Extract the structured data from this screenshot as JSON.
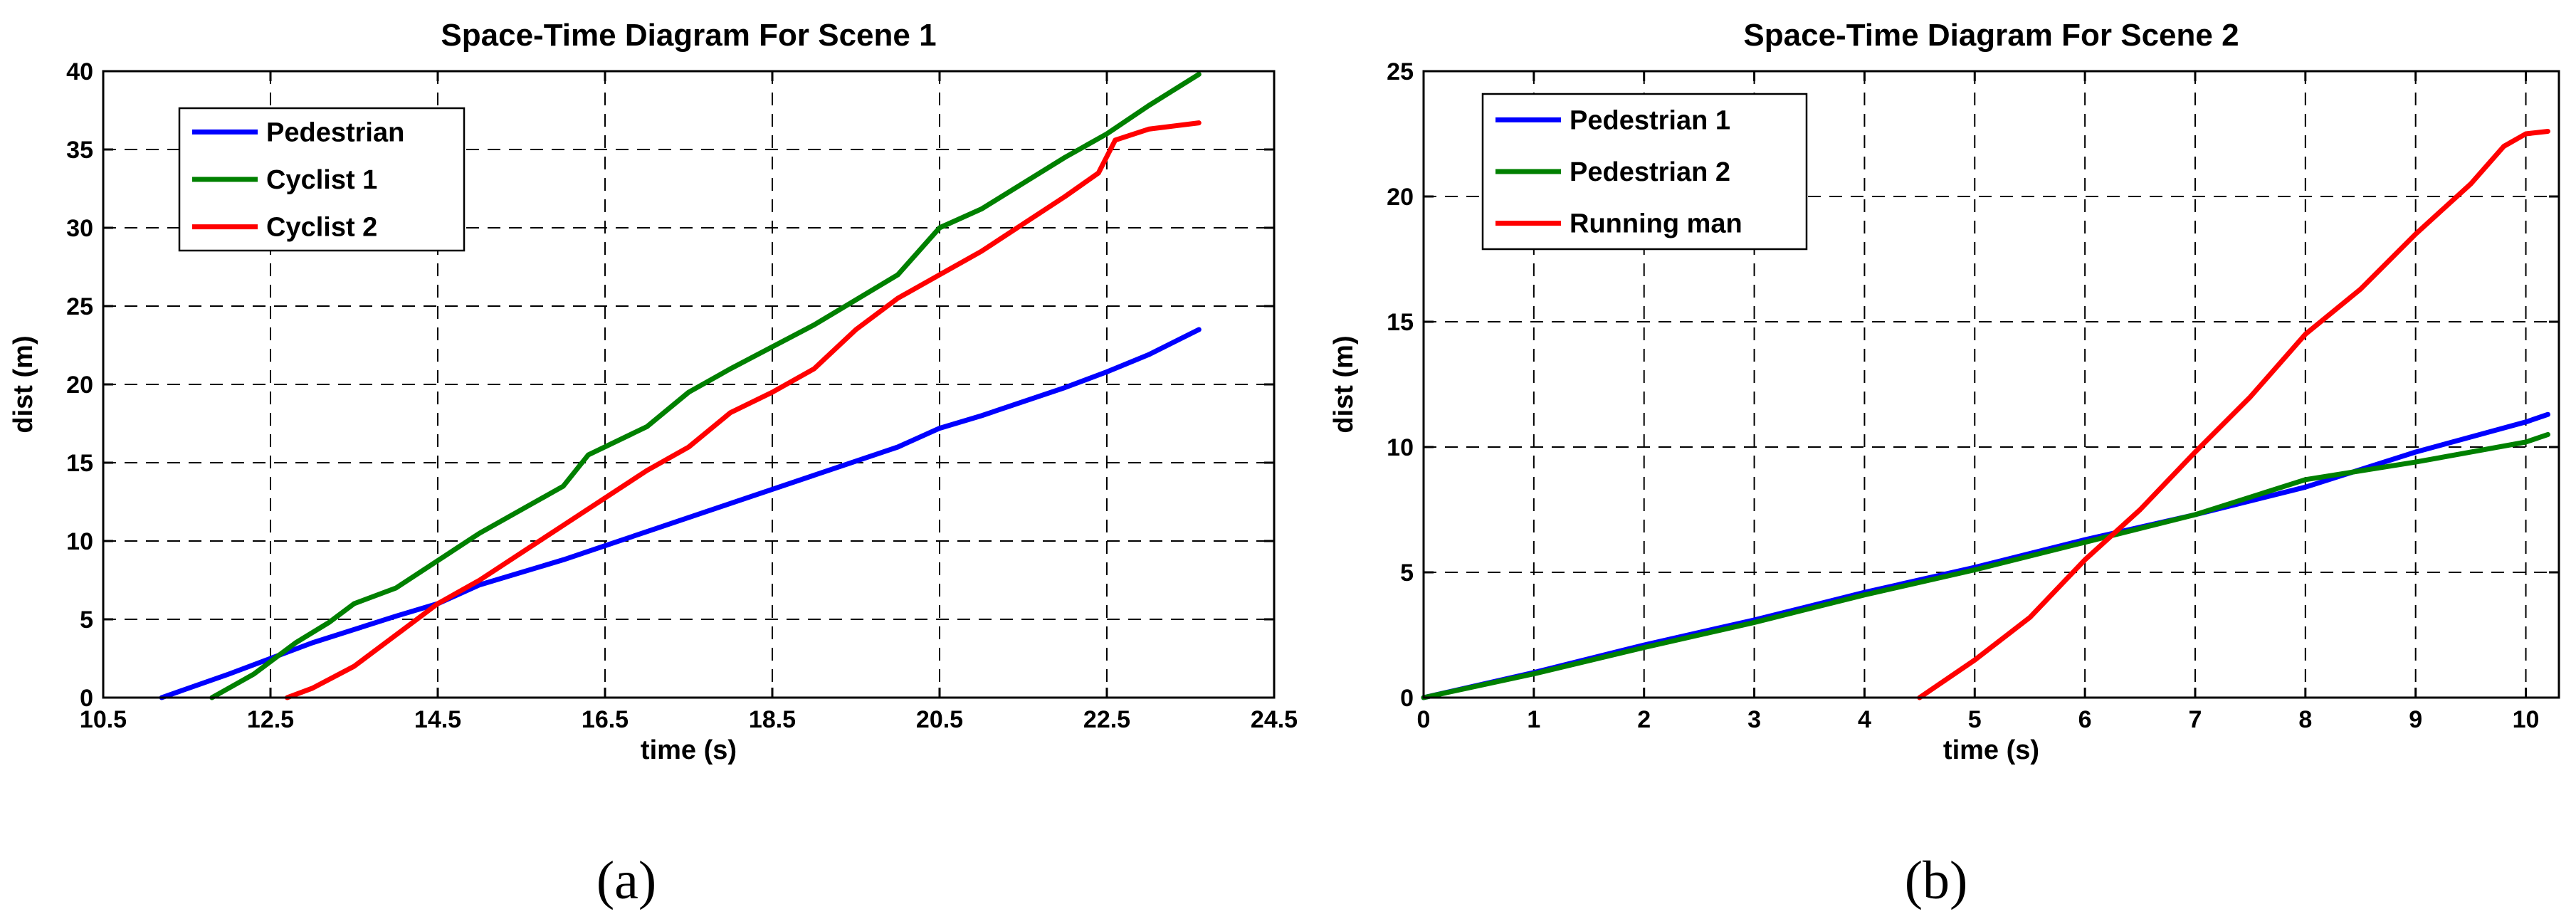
{
  "chart_data": [
    {
      "type": "line",
      "title": "Space-Time Diagram For Scene 1",
      "xlabel": "time (s)",
      "ylabel": "dist (m)",
      "xlim": [
        10.5,
        24.5
      ],
      "ylim": [
        0,
        40
      ],
      "xticks": [
        10.5,
        12.5,
        14.5,
        16.5,
        18.5,
        20.5,
        22.5,
        24.5
      ],
      "xtick_labels": [
        "10.5",
        "12.5",
        "14.5",
        "16.5",
        "18.5",
        "20.5",
        "22.5",
        "24.5"
      ],
      "yticks": [
        0,
        5,
        10,
        15,
        20,
        25,
        30,
        35,
        40
      ],
      "ytick_labels": [
        "0",
        "5",
        "10",
        "15",
        "20",
        "25",
        "30",
        "35",
        "40"
      ],
      "grid": true,
      "legend_position": "top-left",
      "panel_label": "(a)",
      "series": [
        {
          "name": "Pedestrian",
          "color": "#0000ff",
          "x": [
            11.2,
            12.0,
            12.5,
            13.0,
            14.0,
            14.5,
            15.0,
            16.0,
            17.0,
            18.0,
            19.0,
            20.0,
            20.5,
            21.0,
            22.0,
            22.5,
            23.0,
            23.6
          ],
          "y": [
            0,
            1.5,
            2.5,
            3.5,
            5.2,
            6.0,
            7.2,
            8.8,
            10.6,
            12.4,
            14.2,
            16.0,
            17.2,
            18.0,
            19.8,
            20.8,
            21.9,
            23.5
          ]
        },
        {
          "name": "Cyclist 1",
          "color": "#008000",
          "x": [
            11.8,
            12.3,
            12.8,
            13.2,
            13.5,
            14.0,
            15.0,
            16.0,
            16.3,
            17.0,
            17.5,
            18.0,
            19.0,
            20.0,
            20.5,
            21.0,
            22.0,
            22.5,
            23.0,
            23.6
          ],
          "y": [
            0,
            1.5,
            3.5,
            4.8,
            6.0,
            7.0,
            10.5,
            13.5,
            15.5,
            17.3,
            19.5,
            21.0,
            23.8,
            27.0,
            30.0,
            31.2,
            34.5,
            36.0,
            37.8,
            39.8
          ]
        },
        {
          "name": "Cyclist 2",
          "color": "#ff0000",
          "x": [
            12.7,
            13.0,
            13.5,
            14.0,
            14.5,
            15.0,
            16.0,
            17.0,
            17.5,
            18.0,
            18.5,
            19.0,
            19.5,
            20.0,
            20.5,
            21.0,
            22.0,
            22.4,
            22.6,
            23.0,
            23.6
          ],
          "y": [
            0,
            0.6,
            2.0,
            4.0,
            6.0,
            7.5,
            11.0,
            14.5,
            16.0,
            18.2,
            19.5,
            21.0,
            23.5,
            25.5,
            27.0,
            28.5,
            32.0,
            33.5,
            35.6,
            36.3,
            36.7
          ]
        }
      ]
    },
    {
      "type": "line",
      "title": "Space-Time Diagram For Scene 2",
      "xlabel": "time (s)",
      "ylabel": "dist (m)",
      "xlim": [
        0,
        10.3
      ],
      "ylim": [
        0,
        25
      ],
      "xticks": [
        0,
        1,
        2,
        3,
        4,
        5,
        6,
        7,
        8,
        9,
        10
      ],
      "xtick_labels": [
        "0",
        "1",
        "2",
        "3",
        "4",
        "5",
        "6",
        "7",
        "8",
        "9",
        "10"
      ],
      "yticks": [
        0,
        5,
        10,
        15,
        20,
        25
      ],
      "ytick_labels": [
        "0",
        "5",
        "10",
        "15",
        "20",
        "25"
      ],
      "grid": true,
      "legend_position": "top-left",
      "panel_label": "(b)",
      "series": [
        {
          "name": "Pedestrian 1",
          "color": "#0000ff",
          "x": [
            0,
            1,
            2,
            3,
            4,
            5,
            6,
            7,
            8,
            9,
            10,
            10.2
          ],
          "y": [
            0,
            1.0,
            2.1,
            3.1,
            4.2,
            5.2,
            6.3,
            7.3,
            8.4,
            9.8,
            11.0,
            11.3
          ]
        },
        {
          "name": "Pedestrian 2",
          "color": "#008000",
          "x": [
            0,
            1,
            2,
            3,
            4,
            5,
            6,
            7,
            8,
            9,
            10,
            10.2
          ],
          "y": [
            0,
            0.95,
            2.0,
            3.0,
            4.1,
            5.1,
            6.2,
            7.3,
            8.7,
            9.4,
            10.2,
            10.5
          ]
        },
        {
          "name": "Running man",
          "color": "#ff0000",
          "x": [
            4.5,
            5.0,
            5.5,
            6.0,
            6.5,
            7.0,
            7.5,
            8.0,
            8.5,
            9.0,
            9.5,
            9.8,
            10.0,
            10.2
          ],
          "y": [
            0,
            1.5,
            3.2,
            5.5,
            7.5,
            9.8,
            12.0,
            14.5,
            16.3,
            18.5,
            20.5,
            22.0,
            22.5,
            22.6
          ]
        }
      ]
    }
  ]
}
